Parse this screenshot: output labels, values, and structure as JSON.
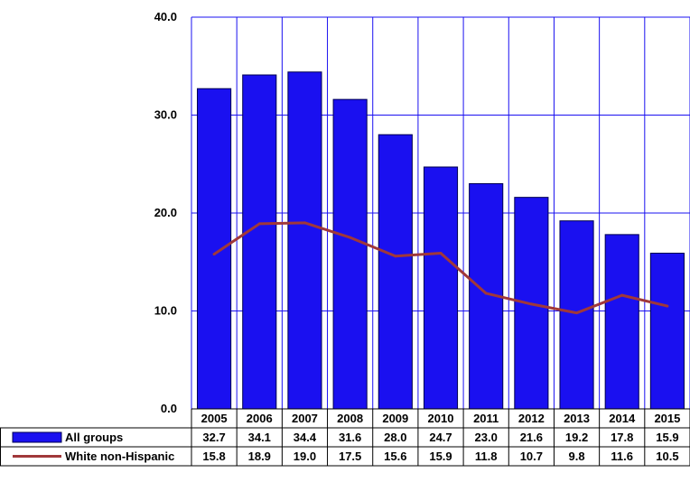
{
  "chart_data": {
    "type": "bar",
    "categories": [
      "2005",
      "2006",
      "2007",
      "2008",
      "2009",
      "2010",
      "2011",
      "2012",
      "2013",
      "2014",
      "2015"
    ],
    "series": [
      {
        "name": "All groups",
        "kind": "bar",
        "color": "#1a10f0",
        "values": [
          32.7,
          34.1,
          34.4,
          31.6,
          28.0,
          24.7,
          23.0,
          21.6,
          19.2,
          17.8,
          15.9
        ],
        "labels": [
          "32.7",
          "34.1",
          "34.4",
          "31.6",
          "28.0",
          "24.7",
          "23.0",
          "21.6",
          "19.2",
          "17.8",
          "15.9"
        ]
      },
      {
        "name": "White non-Hispanic",
        "kind": "line",
        "color": "#a0383a",
        "values": [
          15.8,
          18.9,
          19.0,
          17.5,
          15.6,
          15.9,
          11.8,
          10.7,
          9.8,
          11.6,
          10.5
        ],
        "labels": [
          "15.8",
          "18.9",
          "19.0",
          "17.5",
          "15.6",
          "15.9",
          "11.8",
          "10.7",
          "9.8",
          "11.6",
          "10.5"
        ]
      }
    ],
    "ylim": [
      0,
      40
    ],
    "yticks": [
      "0.0",
      "10.0",
      "20.0",
      "30.0",
      "40.0"
    ],
    "xlabel": "",
    "ylabel": "",
    "title": "",
    "grid": true,
    "grid_color": "#1a10f0",
    "data_table": true
  }
}
